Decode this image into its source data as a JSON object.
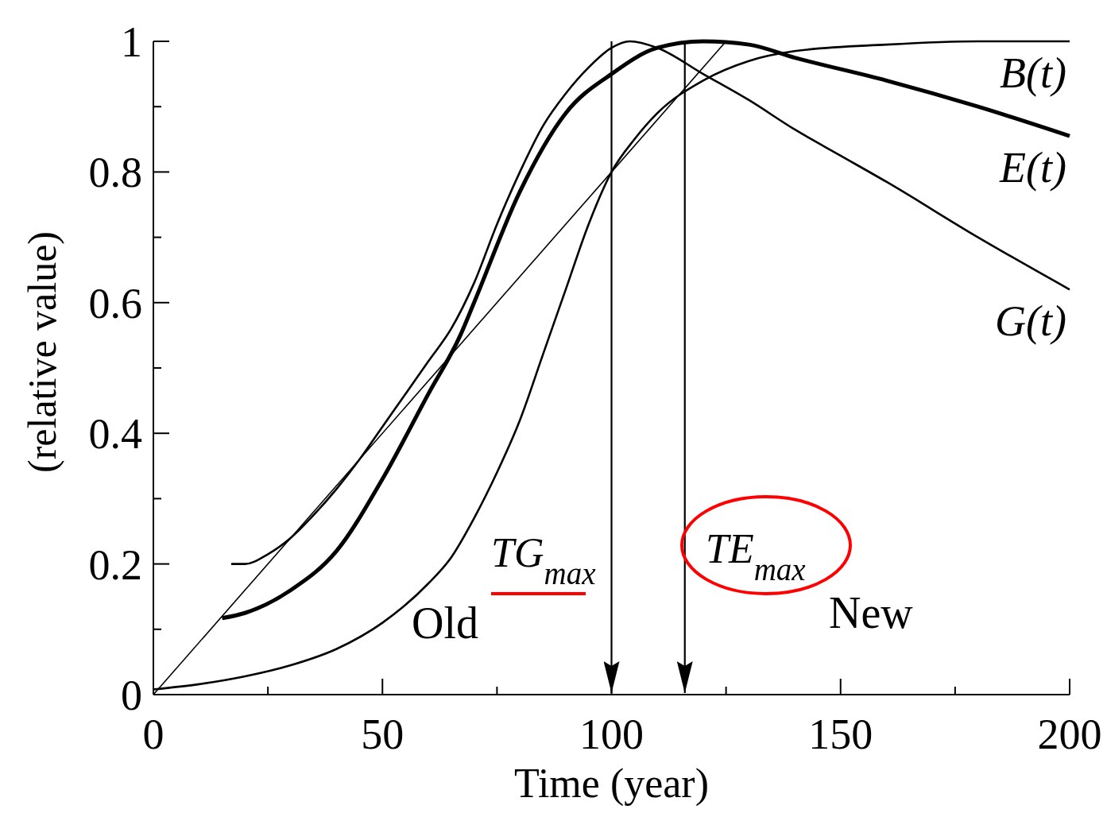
{
  "chart_data": {
    "type": "line",
    "xlabel": "Time (year)",
    "ylabel": "(relative value)",
    "xlim": [
      0,
      200
    ],
    "xticks": [
      0,
      {
        "value": 25,
        "label": null
      },
      50,
      {
        "value": 75,
        "label": null
      },
      100,
      {
        "value": 125,
        "label": null
      },
      150,
      {
        "value": 175,
        "label": null
      },
      200
    ],
    "ylim": [
      0,
      1
    ],
    "yticks": [
      0,
      {
        "value": 0.1,
        "label": null
      },
      0.2,
      {
        "value": 0.3,
        "label": null
      },
      0.4,
      {
        "value": 0.5,
        "label": null
      },
      0.6,
      {
        "value": 0.7,
        "label": null
      },
      0.8,
      {
        "value": 0.9,
        "label": null
      },
      1
    ],
    "grid": false,
    "marker": "none",
    "line_style": "solid",
    "series": [
      {
        "name": "B(t)",
        "color": "#000000",
        "x": [
          0,
          10,
          20,
          30,
          40,
          50,
          60,
          65,
          70,
          75,
          80,
          85,
          90,
          95,
          100,
          105,
          110,
          120,
          130,
          140,
          160,
          180,
          200
        ],
        "values": [
          0.008,
          0.016,
          0.028,
          0.045,
          0.07,
          0.11,
          0.17,
          0.21,
          0.27,
          0.34,
          0.42,
          0.52,
          0.62,
          0.72,
          0.8,
          0.85,
          0.89,
          0.94,
          0.97,
          0.985,
          0.995,
          1,
          1
        ]
      },
      {
        "name": "E(t)",
        "color": "#000000",
        "x": [
          15,
          20,
          30,
          40,
          50,
          60,
          67,
          70,
          80,
          90,
          100,
          110,
          120,
          130,
          140,
          160,
          180,
          200
        ],
        "values": [
          0.117,
          0.125,
          0.16,
          0.22,
          0.33,
          0.46,
          0.55,
          0.6,
          0.77,
          0.89,
          0.95,
          0.99,
          1,
          0.995,
          0.975,
          0.94,
          0.9,
          0.855
        ]
      },
      {
        "name": "G(t)",
        "color": "#000000",
        "x": [
          17,
          20,
          25,
          30,
          35,
          40,
          45,
          50,
          55,
          60,
          65,
          70,
          75,
          80,
          85,
          90,
          95,
          100,
          104,
          110,
          120,
          130,
          140,
          150,
          160,
          180,
          200
        ],
        "values": [
          0.2,
          0.2,
          0.215,
          0.24,
          0.275,
          0.315,
          0.36,
          0.41,
          0.46,
          0.51,
          0.56,
          0.63,
          0.72,
          0.8,
          0.87,
          0.92,
          0.96,
          0.99,
          1,
          0.99,
          0.95,
          0.91,
          0.865,
          0.825,
          0.785,
          0.7,
          0.62
        ]
      },
      {
        "color": "#000000",
        "x": [
          0,
          125
        ],
        "values": [
          0,
          1
        ]
      }
    ],
    "ref_lines": [
      {
        "axis": "x",
        "value": 100,
        "label": null,
        "color": "#000000"
      },
      {
        "axis": "x",
        "value": 116,
        "label": null,
        "color": "#000000"
      }
    ],
    "annotations": [
      "TG$_{max}$",
      "Old",
      "TE$_{max}$",
      "New"
    ]
  }
}
